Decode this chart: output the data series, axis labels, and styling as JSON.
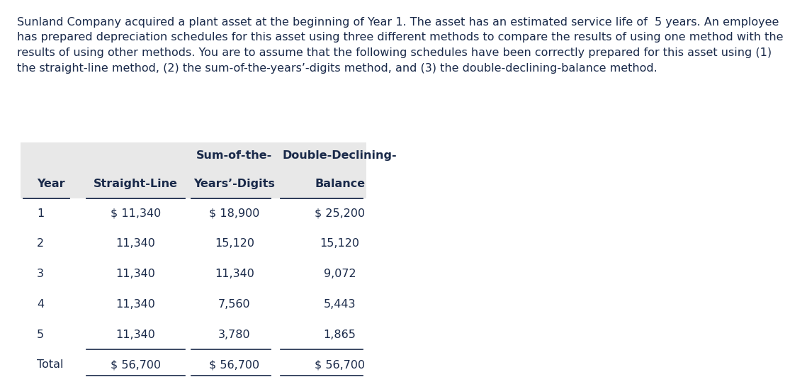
{
  "paragraph_lines": [
    "Sunland Company acquired a plant asset at the beginning of Year 1. The asset has an estimated service life of  5 years. An employee",
    "has prepared depreciation schedules for this asset using three different methods to compare the results of using one method with the",
    "results of using other methods. You are to assume that the following schedules have been correctly prepared for this asset using (1)",
    "the straight-line method, (2) the sum-of-the-years’-digits method, and (3) the double-declining-balance method."
  ],
  "header_row1": [
    "",
    "",
    "Sum-of-the-",
    "Double-Declining-"
  ],
  "header_row2": [
    "Year",
    "Straight-Line",
    "Years’-Digits",
    "Balance"
  ],
  "rows": [
    [
      "1",
      "$ 11,340",
      "$ 18,900",
      "$ 25,200"
    ],
    [
      "2",
      "11,340",
      "15,120",
      "15,120"
    ],
    [
      "3",
      "11,340",
      "11,340",
      "9,072"
    ],
    [
      "4",
      "11,340",
      "7,560",
      "5,443"
    ],
    [
      "5",
      "11,340",
      "3,780",
      "1,865"
    ],
    [
      "Total",
      "$ 56,700",
      "$ 56,700",
      "$ 56,700"
    ]
  ],
  "col_ha": [
    "left",
    "center",
    "center",
    "center"
  ],
  "header_bg": "#e8e8e8",
  "text_color": "#1a2a4a",
  "font_size": 11.5,
  "para_font_size": 11.5
}
